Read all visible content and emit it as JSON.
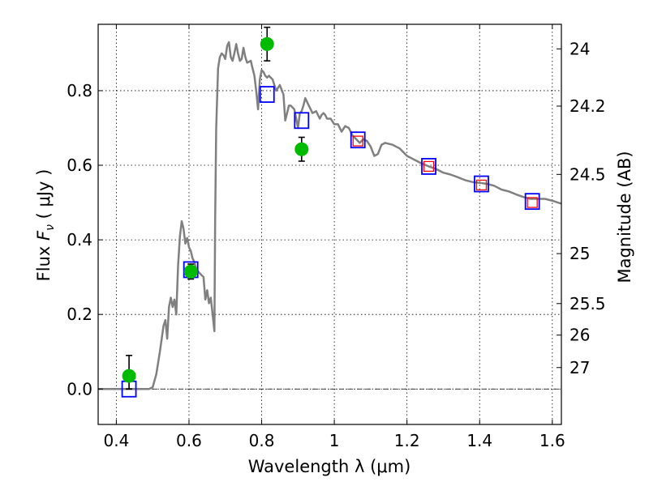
{
  "chart_data": {
    "type": "scatter",
    "title": "",
    "xlabel": "Wavelength  λ (μm)",
    "ylabel": "Flux  F_ν  ( μJy )",
    "ylabel_parts": {
      "pre": "Flux  ",
      "sym": "F",
      "sub": "ν",
      "post": "  ( μJy )"
    },
    "y2label": "Magnitude (AB)",
    "xlim": [
      0.35,
      1.625
    ],
    "ylim": [
      -0.095,
      0.978
    ],
    "grid": true,
    "x_ticks": [
      {
        "value": 0.4,
        "label": "0.4"
      },
      {
        "value": 0.6,
        "label": "0.6"
      },
      {
        "value": 0.8,
        "label": "0.8"
      },
      {
        "value": 1.0,
        "label": "1"
      },
      {
        "value": 1.2,
        "label": "1.2"
      },
      {
        "value": 1.4,
        "label": "1.4"
      },
      {
        "value": 1.6,
        "label": "1.6"
      }
    ],
    "y_ticks": [
      {
        "value": 0.0,
        "label": "0.0"
      },
      {
        "value": 0.2,
        "label": "0.2"
      },
      {
        "value": 0.4,
        "label": "0.4"
      },
      {
        "value": 0.6,
        "label": "0.6"
      },
      {
        "value": 0.8,
        "label": "0.8"
      }
    ],
    "y2_ticks": [
      {
        "value": 24,
        "label": "24"
      },
      {
        "value": 24.2,
        "label": "24.2"
      },
      {
        "value": 24.5,
        "label": "24.5"
      },
      {
        "value": 25,
        "label": "25"
      },
      {
        "value": 25.5,
        "label": "25.5"
      },
      {
        "value": 26,
        "label": "26"
      },
      {
        "value": 27,
        "label": "27"
      }
    ],
    "series": [
      {
        "kind": "line",
        "color": "#808080",
        "points": [
          [
            0.35,
            0.0
          ],
          [
            0.49,
            0.0
          ],
          [
            0.5,
            0.005
          ],
          [
            0.51,
            0.04
          ],
          [
            0.52,
            0.1
          ],
          [
            0.53,
            0.17
          ],
          [
            0.535,
            0.185
          ],
          [
            0.54,
            0.135
          ],
          [
            0.545,
            0.22
          ],
          [
            0.55,
            0.245
          ],
          [
            0.555,
            0.22
          ],
          [
            0.56,
            0.24
          ],
          [
            0.565,
            0.2
          ],
          [
            0.57,
            0.33
          ],
          [
            0.575,
            0.41
          ],
          [
            0.58,
            0.45
          ],
          [
            0.585,
            0.43
          ],
          [
            0.59,
            0.39
          ],
          [
            0.595,
            0.405
          ],
          [
            0.6,
            0.38
          ],
          [
            0.605,
            0.37
          ],
          [
            0.61,
            0.35
          ],
          [
            0.615,
            0.34
          ],
          [
            0.62,
            0.32
          ],
          [
            0.63,
            0.31
          ],
          [
            0.64,
            0.3
          ],
          [
            0.645,
            0.24
          ],
          [
            0.65,
            0.265
          ],
          [
            0.655,
            0.23
          ],
          [
            0.66,
            0.245
          ],
          [
            0.665,
            0.2
          ],
          [
            0.67,
            0.155
          ],
          [
            0.672,
            0.45
          ],
          [
            0.675,
            0.7
          ],
          [
            0.68,
            0.86
          ],
          [
            0.685,
            0.89
          ],
          [
            0.69,
            0.9
          ],
          [
            0.695,
            0.895
          ],
          [
            0.7,
            0.885
          ],
          [
            0.705,
            0.92
          ],
          [
            0.71,
            0.93
          ],
          [
            0.715,
            0.89
          ],
          [
            0.72,
            0.88
          ],
          [
            0.725,
            0.9
          ],
          [
            0.73,
            0.925
          ],
          [
            0.735,
            0.9
          ],
          [
            0.74,
            0.88
          ],
          [
            0.745,
            0.885
          ],
          [
            0.75,
            0.915
          ],
          [
            0.755,
            0.89
          ],
          [
            0.76,
            0.875
          ],
          [
            0.77,
            0.88
          ],
          [
            0.775,
            0.86
          ],
          [
            0.78,
            0.84
          ],
          [
            0.785,
            0.8
          ],
          [
            0.79,
            0.75
          ],
          [
            0.795,
            0.83
          ],
          [
            0.8,
            0.855
          ],
          [
            0.805,
            0.85
          ],
          [
            0.81,
            0.84
          ],
          [
            0.815,
            0.835
          ],
          [
            0.82,
            0.84
          ],
          [
            0.83,
            0.83
          ],
          [
            0.84,
            0.8
          ],
          [
            0.85,
            0.815
          ],
          [
            0.86,
            0.79
          ],
          [
            0.865,
            0.72
          ],
          [
            0.87,
            0.74
          ],
          [
            0.875,
            0.76
          ],
          [
            0.88,
            0.76
          ],
          [
            0.89,
            0.75
          ],
          [
            0.895,
            0.725
          ],
          [
            0.9,
            0.7
          ],
          [
            0.905,
            0.74
          ],
          [
            0.91,
            0.745
          ],
          [
            0.915,
            0.76
          ],
          [
            0.92,
            0.78
          ],
          [
            0.93,
            0.76
          ],
          [
            0.94,
            0.74
          ],
          [
            0.95,
            0.745
          ],
          [
            0.96,
            0.725
          ],
          [
            0.965,
            0.735
          ],
          [
            0.97,
            0.74
          ],
          [
            0.975,
            0.735
          ],
          [
            0.98,
            0.725
          ],
          [
            0.99,
            0.725
          ],
          [
            1.0,
            0.71
          ],
          [
            1.01,
            0.71
          ],
          [
            1.02,
            0.69
          ],
          [
            1.03,
            0.705
          ],
          [
            1.04,
            0.7
          ],
          [
            1.05,
            0.68
          ],
          [
            1.06,
            0.67
          ],
          [
            1.07,
            0.66
          ],
          [
            1.08,
            0.67
          ],
          [
            1.09,
            0.665
          ],
          [
            1.1,
            0.65
          ],
          [
            1.11,
            0.625
          ],
          [
            1.12,
            0.63
          ],
          [
            1.13,
            0.655
          ],
          [
            1.14,
            0.66
          ],
          [
            1.16,
            0.655
          ],
          [
            1.18,
            0.645
          ],
          [
            1.2,
            0.625
          ],
          [
            1.22,
            0.615
          ],
          [
            1.24,
            0.605
          ],
          [
            1.26,
            0.597
          ],
          [
            1.28,
            0.59
          ],
          [
            1.3,
            0.58
          ],
          [
            1.32,
            0.575
          ],
          [
            1.34,
            0.568
          ],
          [
            1.36,
            0.56
          ],
          [
            1.38,
            0.555
          ],
          [
            1.4,
            0.553
          ],
          [
            1.42,
            0.55
          ],
          [
            1.44,
            0.545
          ],
          [
            1.46,
            0.535
          ],
          [
            1.48,
            0.53
          ],
          [
            1.5,
            0.522
          ],
          [
            1.52,
            0.515
          ],
          [
            1.54,
            0.51
          ],
          [
            1.56,
            0.51
          ],
          [
            1.58,
            0.51
          ],
          [
            1.6,
            0.505
          ],
          [
            1.625,
            0.497
          ]
        ]
      },
      {
        "kind": "squares",
        "color": "#0000ff",
        "points": [
          [
            0.435,
            0.0
          ],
          [
            0.605,
            0.32
          ],
          [
            0.815,
            0.79
          ],
          [
            0.91,
            0.72
          ],
          [
            1.065,
            0.668
          ],
          [
            1.26,
            0.597
          ],
          [
            1.405,
            0.55
          ],
          [
            1.545,
            0.503
          ]
        ]
      },
      {
        "kind": "squares",
        "color": "#ff0000",
        "points": [
          [
            1.065,
            0.665
          ],
          [
            1.26,
            0.597
          ],
          [
            1.405,
            0.547
          ],
          [
            1.545,
            0.5
          ]
        ]
      },
      {
        "kind": "circles",
        "color": "#00bb00",
        "points": [
          {
            "x": 0.435,
            "y": 0.035,
            "err_lo": 0.035,
            "err_hi": 0.055
          },
          {
            "x": 0.605,
            "y": 0.315,
            "err_lo": 0.02,
            "err_hi": 0.02
          },
          {
            "x": 0.815,
            "y": 0.925,
            "err_lo": 0.045,
            "err_hi": 0.045
          },
          {
            "x": 0.91,
            "y": 0.643,
            "err_lo": 0.032,
            "err_hi": 0.032
          }
        ]
      }
    ]
  }
}
